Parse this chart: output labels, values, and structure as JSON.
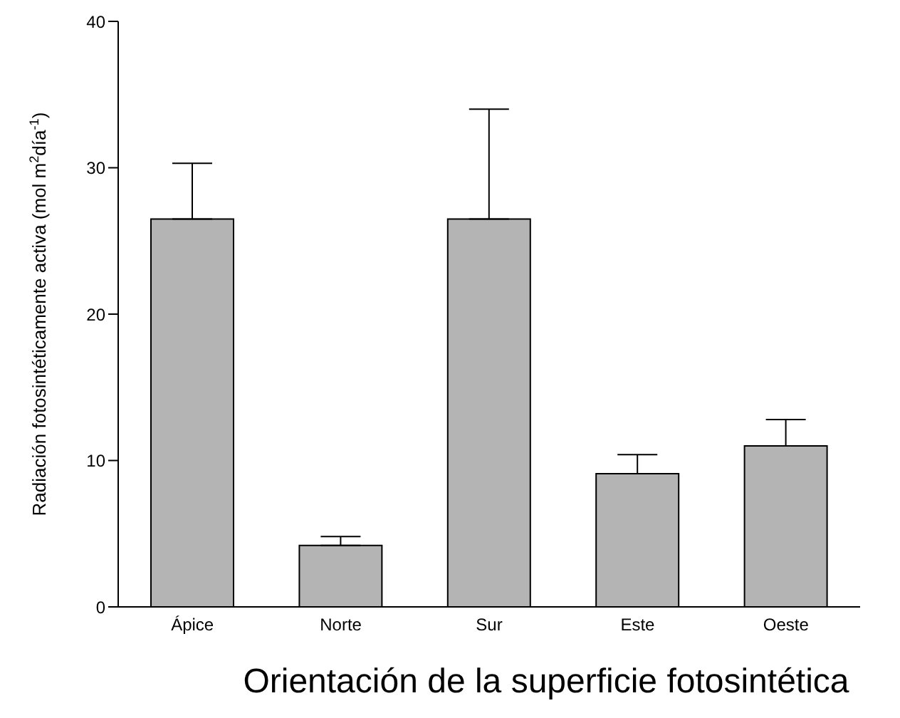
{
  "chart_data": {
    "type": "bar",
    "xlabel": "Orientación de la superficie fotosintética",
    "ylabel": "Radiación fotosintéticamente activa (mol m$^{2}$día$^{-1}$)",
    "categories": [
      "Ápice",
      "Norte",
      "Sur",
      "Este",
      "Oeste"
    ],
    "values": [
      26.5,
      4.2,
      26.5,
      9.1,
      11.0
    ],
    "errors": [
      [
        26.5,
        30.3
      ],
      [
        4.2,
        4.8
      ],
      [
        26.5,
        34.0
      ],
      [
        9.1,
        10.4
      ],
      [
        11.0,
        12.8
      ]
    ],
    "color": "#b4b4b4",
    "ylim": [
      0,
      40
    ],
    "yticks": [
      0,
      10,
      20,
      30,
      40
    ],
    "grid": false,
    "legend": false
  }
}
